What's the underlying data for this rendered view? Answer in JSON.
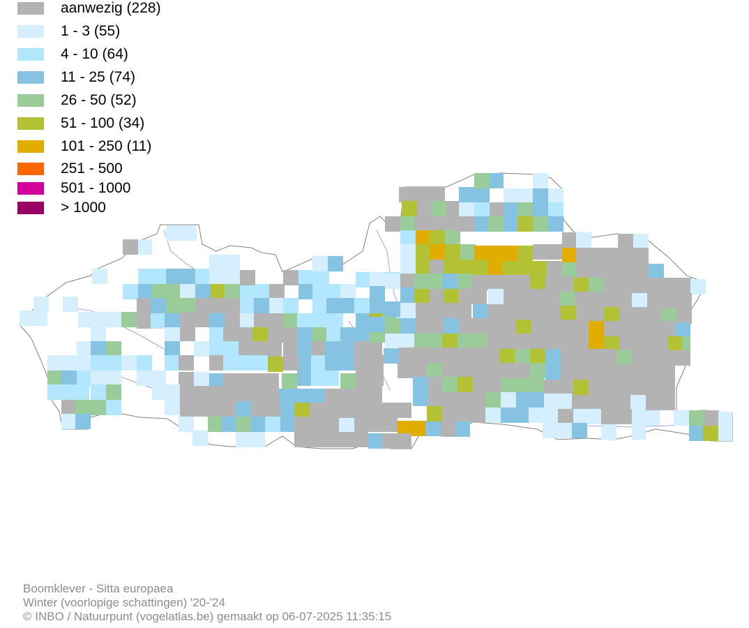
{
  "legend": [
    {
      "label": "aanwezig (228)",
      "color": "#b3b3b3"
    },
    {
      "label": "1 - 3 (55)",
      "color": "#d6efff"
    },
    {
      "label": "4 - 10 (64)",
      "color": "#b3e6ff"
    },
    {
      "label": "11 - 25 (74)",
      "color": "#86c3e2"
    },
    {
      "label": "26 - 50 (52)",
      "color": "#99cc99"
    },
    {
      "label": "51 - 100 (34)",
      "color": "#b3c134"
    },
    {
      "label": "101 - 250 (11)",
      "color": "#e0ad00"
    },
    {
      "label": "251 - 500",
      "color": "#ff6600"
    },
    {
      "label": "501 - 1000",
      "color": "#d4009b"
    },
    {
      "label": "> 1000",
      "color": "#990066"
    }
  ],
  "footer": {
    "species": "Boomklever - Sitta europaea",
    "period": "Winter (voorlopige schattingen) '20-'24",
    "credit": "© INBO / Natuurpunt (vogelatlas.be) gemaakt op 06-07-2025 11:35:15"
  },
  "colors": {
    "border": "#7f7f7f",
    "rivers": "#8a8ae0",
    "footer_text": "#8c8c8c"
  }
}
